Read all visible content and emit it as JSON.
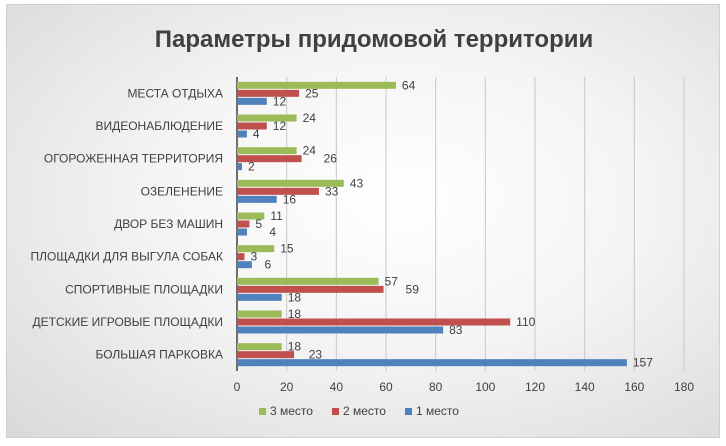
{
  "chart_data": {
    "type": "bar",
    "orientation": "horizontal",
    "title": "Параметры придомовой территории",
    "categories": [
      "МЕСТА ОТДЫХА",
      "ВИДЕОНАБЛЮДЕНИЕ",
      "ОГОРОЖЕННАЯ ТЕРРИТОРИЯ",
      "ОЗЕЛЕНЕНИЕ",
      "ДВОР БЕЗ МАШИН",
      "ПЛОЩАДКИ ДЛЯ ВЫГУЛА  СОБАК",
      "СПОРТИВНЫЕ ПЛОЩАДКИ",
      "ДЕТСКИЕ ИГРОВЫЕ ПЛОЩАДКИ",
      "БОЛЬШАЯ  ПАРКОВКА"
    ],
    "series": [
      {
        "name": "3 место",
        "color": "#9bbb59",
        "values": [
          64,
          24,
          24,
          43,
          11,
          15,
          57,
          18,
          18
        ]
      },
      {
        "name": "2 место",
        "color": "#c0504d",
        "values": [
          25,
          12,
          26,
          33,
          5,
          3,
          59,
          110,
          23
        ]
      },
      {
        "name": "1 место",
        "color": "#4f81bd",
        "values": [
          12,
          4,
          2,
          16,
          4,
          6,
          18,
          83,
          157
        ]
      }
    ],
    "xlim": [
      0,
      180
    ],
    "xticks": [
      0,
      20,
      40,
      60,
      80,
      100,
      120,
      140,
      160,
      180
    ],
    "grid": true,
    "legend": "bottom",
    "data_labels": true
  }
}
